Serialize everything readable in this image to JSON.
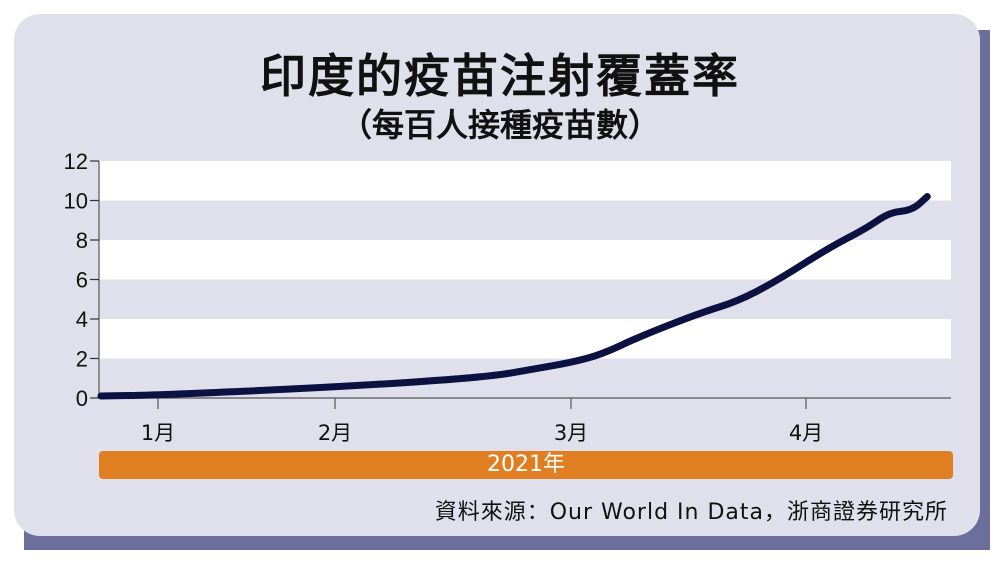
{
  "chart_data": {
    "type": "line",
    "title": "印度的疫苗注射覆蓋率",
    "subtitle": "（每百人接種疫苗數）",
    "xlabel": "2021年",
    "ylabel": "",
    "ylim": [
      0,
      12
    ],
    "yticks": [
      0,
      2,
      4,
      6,
      8,
      10,
      12
    ],
    "xticks": [
      {
        "date": "2021-01-01",
        "label": "1月"
      },
      {
        "date": "2021-02-01",
        "label": "2月"
      },
      {
        "date": "2021-03-01",
        "label": "3月"
      },
      {
        "date": "2021-04-01",
        "label": "4月"
      }
    ],
    "grid": "alternating horizontal bands",
    "series": [
      {
        "color": "#0b1140",
        "points": [
          {
            "x": "2020-12-22",
            "y": 0.1
          },
          {
            "x": "2021-01-01",
            "y": 0.15
          },
          {
            "x": "2021-02-01",
            "y": 0.55
          },
          {
            "x": "2021-02-19",
            "y": 1.05
          },
          {
            "x": "2021-02-25",
            "y": 1.5
          },
          {
            "x": "2021-03-01",
            "y": 1.8
          },
          {
            "x": "2021-03-05",
            "y": 2.2
          },
          {
            "x": "2021-03-10",
            "y": 3.1
          },
          {
            "x": "2021-03-18",
            "y": 4.3
          },
          {
            "x": "2021-03-23",
            "y": 4.9
          },
          {
            "x": "2021-03-28",
            "y": 5.9
          },
          {
            "x": "2021-04-04",
            "y": 7.6
          },
          {
            "x": "2021-04-09",
            "y": 8.6
          },
          {
            "x": "2021-04-12",
            "y": 9.4
          },
          {
            "x": "2021-04-15",
            "y": 9.5
          },
          {
            "x": "2021-04-17",
            "y": 10.2
          }
        ]
      }
    ]
  },
  "source": "資料來源：Our World In Data，浙商證券研究所",
  "colors": {
    "panel": "#dfe0ec",
    "shadow": "#6c6f9c",
    "band": "#ffffff",
    "line": "#0b1140",
    "year_bar": "#e07f22"
  }
}
